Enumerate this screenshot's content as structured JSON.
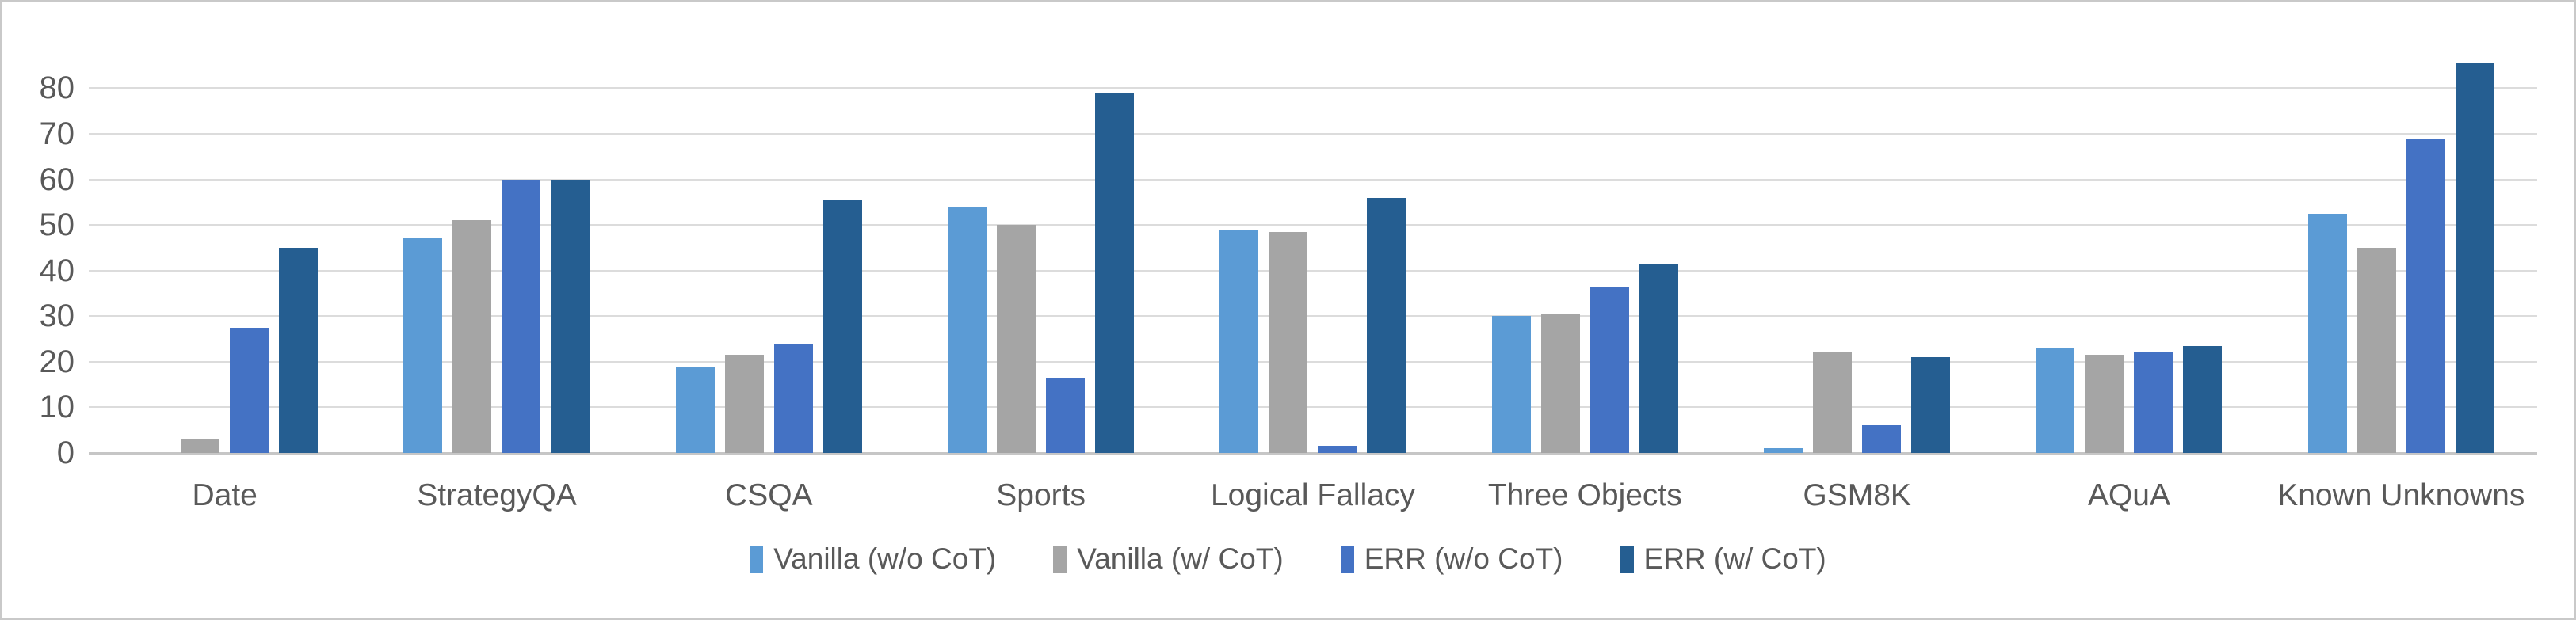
{
  "chart_data": {
    "type": "bar",
    "title": "",
    "xlabel": "",
    "ylabel": "",
    "categories": [
      "Date",
      "StrategyQA",
      "CSQA",
      "Sports",
      "Logical Fallacy",
      "Three Objects",
      "GSM8K",
      "AQuA",
      "Known Unknowns"
    ],
    "series": [
      {
        "name": "Vanilla (w/o CoT)",
        "color": "#5B9BD5",
        "values": [
          0,
          47,
          19,
          54,
          49,
          30,
          1,
          23,
          52.5
        ]
      },
      {
        "name": "Vanilla (w/ CoT)",
        "color": "#A5A5A5",
        "values": [
          3,
          51,
          21.5,
          50,
          48.5,
          30.5,
          22,
          21.5,
          45
        ]
      },
      {
        "name": "ERR (w/o CoT)",
        "color": "#4472C4",
        "values": [
          27.5,
          60,
          24,
          16.5,
          1.5,
          36.5,
          6,
          22,
          69
        ]
      },
      {
        "name": "ERR (w/ CoT)",
        "color": "#255E91",
        "values": [
          45,
          60,
          55.5,
          79,
          56,
          41.5,
          21,
          23.5,
          85.5
        ]
      }
    ],
    "ylim": [
      0,
      80
    ],
    "yticks": [
      0,
      10,
      20,
      30,
      40,
      50,
      60,
      70,
      80
    ],
    "grid": true,
    "legend_position": "bottom"
  },
  "colors": {
    "background": "#FFFFFF",
    "gridline": "#DCDCDC",
    "axis_line": "#C6C6C6",
    "text": "#595959",
    "border": "#C9C9C9"
  }
}
